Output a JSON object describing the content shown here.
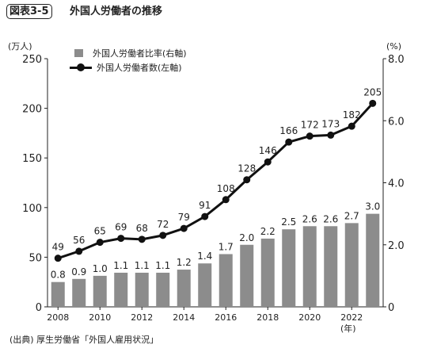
{
  "header": {
    "figure_label": "図表3-5",
    "title": "外国人労働者の推移"
  },
  "units": {
    "left": "(万人)",
    "right": "(%)",
    "year": "(年)"
  },
  "source": "(出典) 厚生労働省「外国人雇用状況」",
  "chart_data": {
    "type": "bar+line",
    "categories": [
      "2008",
      "2009",
      "2010",
      "2011",
      "2012",
      "2013",
      "2014",
      "2015",
      "2016",
      "2017",
      "2018",
      "2019",
      "2020",
      "2021",
      "2022",
      "2023"
    ],
    "x_tick_labels": [
      "2008",
      "2010",
      "2012",
      "2014",
      "2016",
      "2018",
      "2020",
      "2022"
    ],
    "series": [
      {
        "name": "外国人労働者比率(右軸)",
        "type": "bar",
        "axis": "right",
        "color": "#8c8c8c",
        "values": [
          0.8,
          0.9,
          1.0,
          1.1,
          1.1,
          1.1,
          1.2,
          1.4,
          1.7,
          2.0,
          2.2,
          2.5,
          2.6,
          2.6,
          2.7,
          3.0
        ],
        "labels": [
          "0.8",
          "0.9",
          "1.0",
          "1.1",
          "1.1",
          "1.1",
          "1.2",
          "1.4",
          "1.7",
          "2.0",
          "2.2",
          "2.5",
          "2.6",
          "2.6",
          "2.7",
          "3.0"
        ]
      },
      {
        "name": "外国人労働者数(左軸)",
        "type": "line",
        "axis": "left",
        "color": "#111111",
        "values": [
          49,
          56,
          65,
          69,
          68,
          72,
          79,
          91,
          108,
          128,
          146,
          166,
          172,
          173,
          182,
          205
        ],
        "labels": [
          "49",
          "56",
          "65",
          "69",
          "68",
          "72",
          "79",
          "91",
          "108",
          "128",
          "146",
          "166",
          "172",
          "173",
          "182",
          "205"
        ]
      }
    ],
    "left_axis": {
      "ylim": [
        0,
        250
      ],
      "ticks": [
        "0",
        "50",
        "100",
        "150",
        "200",
        "250"
      ]
    },
    "right_axis": {
      "ylim": [
        0,
        8.0
      ],
      "ticks": [
        "0",
        "2.0",
        "4.0",
        "6.0",
        "8.0"
      ]
    },
    "grid": false,
    "legend_position": "top-left"
  }
}
